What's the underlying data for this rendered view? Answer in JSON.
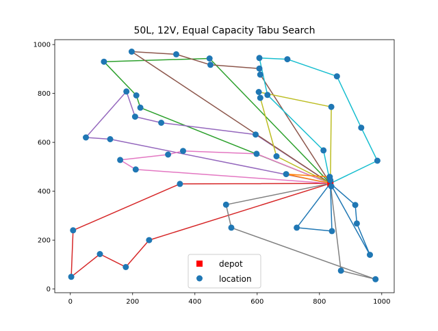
{
  "chart_data": {
    "type": "scatter",
    "title": "50L, 12V, Equal Capacity Tabu Search",
    "xlabel": "",
    "ylabel": "",
    "xlim": [
      -50,
      1040
    ],
    "ylim": [
      -15,
      1020
    ],
    "xticks": [
      0,
      200,
      400,
      600,
      800,
      1000
    ],
    "yticks": [
      0,
      200,
      400,
      600,
      800,
      1000
    ],
    "grid": false,
    "legend_position": "bottom-center",
    "depot": {
      "name": "depot",
      "color": "#ff0000",
      "x": 835,
      "y": 432
    },
    "locations": {
      "name": "location",
      "color": "#1f77b4",
      "points": [
        [
          197,
          971
        ],
        [
          340,
          960
        ],
        [
          447,
          943
        ],
        [
          450,
          917
        ],
        [
          607,
          945
        ],
        [
          697,
          940
        ],
        [
          108,
          930
        ],
        [
          607,
          902
        ],
        [
          610,
          877
        ],
        [
          856,
          870
        ],
        [
          180,
          808
        ],
        [
          212,
          792
        ],
        [
          605,
          806
        ],
        [
          633,
          794
        ],
        [
          610,
          782
        ],
        [
          838,
          745
        ],
        [
          225,
          742
        ],
        [
          208,
          705
        ],
        [
          292,
          680
        ],
        [
          934,
          660
        ],
        [
          595,
          632
        ],
        [
          50,
          620
        ],
        [
          128,
          613
        ],
        [
          813,
          567
        ],
        [
          362,
          565
        ],
        [
          314,
          550
        ],
        [
          598,
          553
        ],
        [
          662,
          543
        ],
        [
          986,
          525
        ],
        [
          160,
          528
        ],
        [
          210,
          489
        ],
        [
          693,
          470
        ],
        [
          833,
          459
        ],
        [
          835,
          445
        ],
        [
          352,
          430
        ],
        [
          500,
          345
        ],
        [
          915,
          344
        ],
        [
          920,
          268
        ],
        [
          517,
          251
        ],
        [
          727,
          251
        ],
        [
          840,
          237
        ],
        [
          9,
          240
        ],
        [
          253,
          200
        ],
        [
          95,
          143
        ],
        [
          178,
          90
        ],
        [
          962,
          140
        ],
        [
          869,
          75
        ],
        [
          980,
          40
        ],
        [
          3,
          50
        ],
        [
          838,
          420
        ]
      ]
    },
    "routes": [
      {
        "color": "#d62728",
        "points": [
          [
            835,
            432
          ],
          [
            352,
            430
          ],
          [
            9,
            240
          ],
          [
            3,
            50
          ],
          [
            95,
            143
          ],
          [
            178,
            90
          ],
          [
            253,
            200
          ],
          [
            835,
            432
          ]
        ]
      },
      {
        "color": "#2ca02c",
        "points": [
          [
            835,
            432
          ],
          [
            225,
            742
          ],
          [
            212,
            792
          ],
          [
            108,
            930
          ],
          [
            447,
            943
          ],
          [
            835,
            432
          ]
        ]
      },
      {
        "color": "#9467bd",
        "points": [
          [
            835,
            432
          ],
          [
            595,
            632
          ],
          [
            292,
            680
          ],
          [
            208,
            705
          ],
          [
            180,
            808
          ],
          [
            50,
            620
          ],
          [
            128,
            613
          ],
          [
            835,
            432
          ]
        ]
      },
      {
        "color": "#8c564b",
        "points": [
          [
            835,
            432
          ],
          [
            610,
            877
          ],
          [
            607,
            902
          ],
          [
            450,
            917
          ],
          [
            340,
            960
          ],
          [
            197,
            971
          ],
          [
            835,
            432
          ]
        ]
      },
      {
        "color": "#e377c2",
        "points": [
          [
            835,
            432
          ],
          [
            598,
            553
          ],
          [
            362,
            565
          ],
          [
            314,
            550
          ],
          [
            160,
            528
          ],
          [
            210,
            489
          ],
          [
            835,
            432
          ]
        ]
      },
      {
        "color": "#7f7f7f",
        "points": [
          [
            835,
            432
          ],
          [
            500,
            345
          ],
          [
            517,
            251
          ],
          [
            980,
            40
          ],
          [
            869,
            75
          ],
          [
            835,
            432
          ]
        ]
      },
      {
        "color": "#bcbd22",
        "points": [
          [
            835,
            432
          ],
          [
            838,
            745
          ],
          [
            605,
            806
          ],
          [
            610,
            782
          ],
          [
            662,
            543
          ],
          [
            835,
            432
          ]
        ]
      },
      {
        "color": "#17becf",
        "points": [
          [
            835,
            432
          ],
          [
            986,
            525
          ],
          [
            934,
            660
          ],
          [
            856,
            870
          ],
          [
            697,
            940
          ],
          [
            607,
            945
          ],
          [
            633,
            794
          ],
          [
            813,
            567
          ],
          [
            835,
            432
          ]
        ]
      },
      {
        "color": "#1f77b4",
        "points": [
          [
            835,
            432
          ],
          [
            915,
            344
          ],
          [
            920,
            268
          ],
          [
            962,
            140
          ],
          [
            835,
            432
          ]
        ]
      },
      {
        "color": "#ff7f0e",
        "points": [
          [
            835,
            432
          ],
          [
            693,
            470
          ],
          [
            833,
            459
          ],
          [
            835,
            445
          ],
          [
            835,
            432
          ]
        ]
      },
      {
        "color": "#1f77b4",
        "points": [
          [
            835,
            432
          ],
          [
            840,
            237
          ],
          [
            727,
            251
          ],
          [
            835,
            432
          ]
        ]
      },
      {
        "color": "#ff7f0e",
        "points": [
          [
            835,
            432
          ],
          [
            838,
            420
          ],
          [
            835,
            432
          ]
        ]
      }
    ]
  }
}
